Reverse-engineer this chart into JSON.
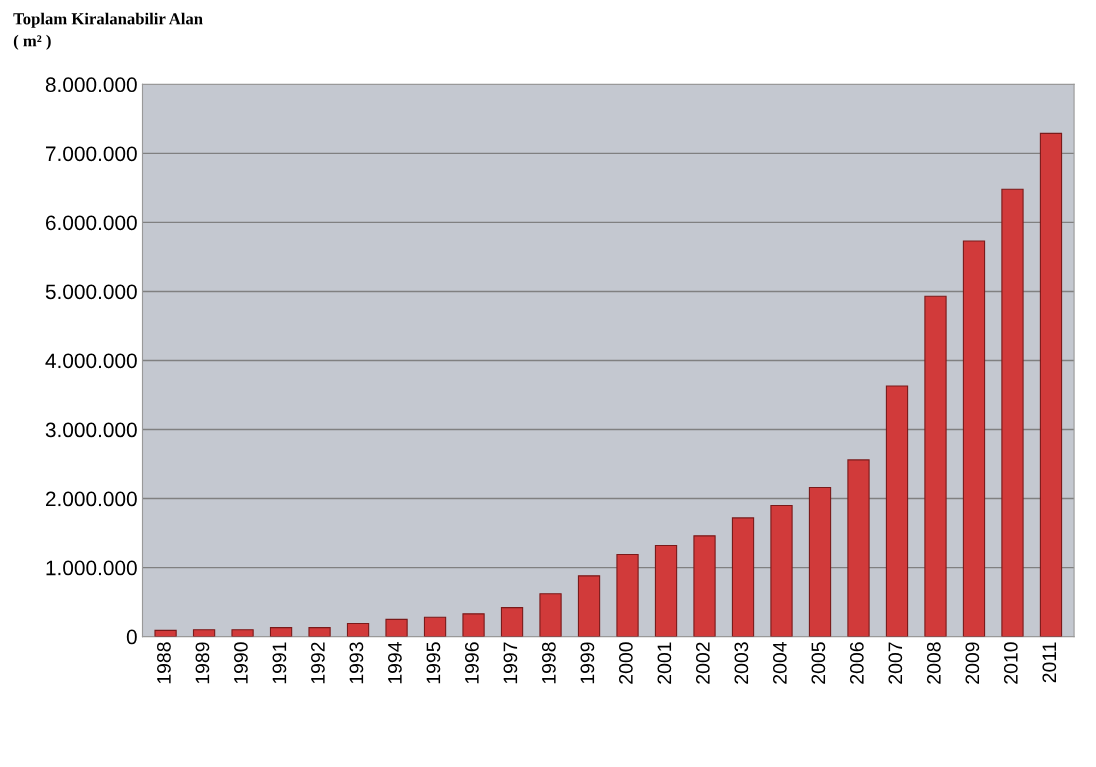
{
  "chart_data": {
    "type": "bar",
    "ylabel": "Toplam Kiralanabilir Alan\n( m² )",
    "categories": [
      "1988",
      "1989",
      "1990",
      "1991",
      "1992",
      "1993",
      "1994",
      "1995",
      "1996",
      "1997",
      "1998",
      "1999",
      "2000",
      "2001",
      "2002",
      "2003",
      "2004",
      "2005",
      "2006",
      "2007",
      "2008",
      "2009",
      "2010",
      "2011"
    ],
    "values": [
      90000,
      100000,
      100000,
      130000,
      130000,
      190000,
      250000,
      280000,
      330000,
      420000,
      620000,
      880000,
      1190000,
      1320000,
      1460000,
      1720000,
      1900000,
      2160000,
      2560000,
      3630000,
      4930000,
      5730000,
      6480000,
      7290000
    ],
    "color": "#d13a3a",
    "ylim": [
      0,
      8000000
    ],
    "yticks": [
      {
        "value": 0,
        "label": "0"
      },
      {
        "value": 1000000,
        "label": "1.000.000"
      },
      {
        "value": 2000000,
        "label": "2.000.000"
      },
      {
        "value": 3000000,
        "label": "3.000.000"
      },
      {
        "value": 4000000,
        "label": "4.000.000"
      },
      {
        "value": 5000000,
        "label": "5.000.000"
      },
      {
        "value": 6000000,
        "label": "6.000.000"
      },
      {
        "value": 7000000,
        "label": "7.000.000"
      },
      {
        "value": 8000000,
        "label": "8.000.000"
      }
    ],
    "grid": "y"
  }
}
